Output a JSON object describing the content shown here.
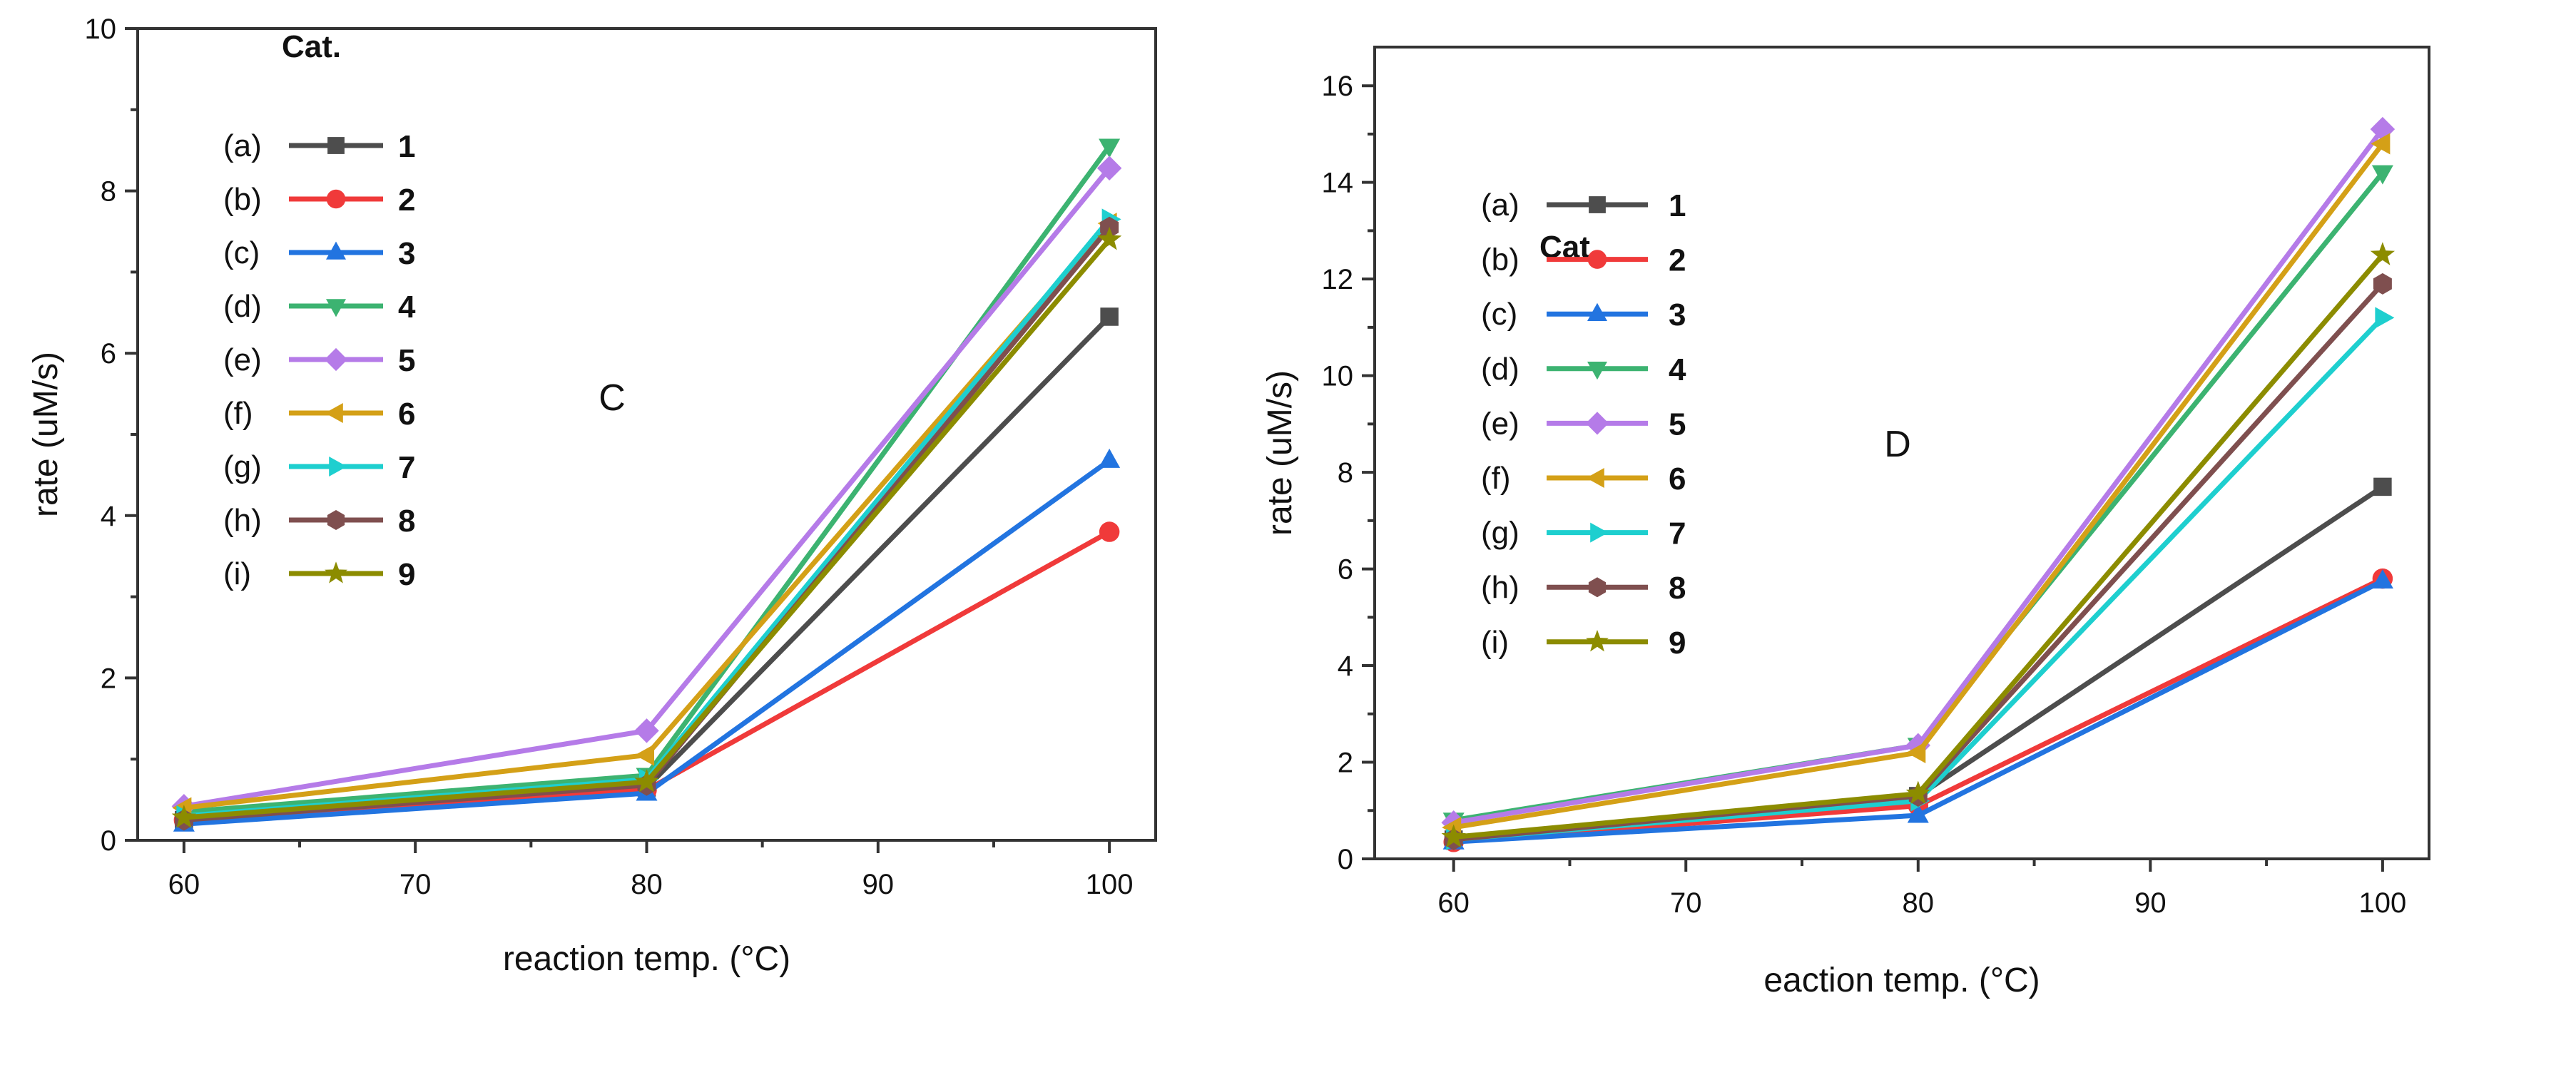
{
  "chart_data": [
    {
      "type": "line",
      "panel_label": "C",
      "title": "",
      "xlabel": "reaction temp. (°C)",
      "ylabel": "rate (uM/s)",
      "xlim": [
        58,
        102
      ],
      "ylim": [
        0,
        10
      ],
      "x": [
        60,
        80,
        100
      ],
      "xticks": [
        60,
        70,
        80,
        90,
        100
      ],
      "yticks": [
        0,
        2,
        4,
        6,
        8,
        10
      ],
      "grid": false,
      "legend_title": "Cat.",
      "legend_placement": "top-left",
      "series": [
        {
          "prefix": "(a)",
          "name": "1",
          "color": "#4d4d4d",
          "marker": "square",
          "values": [
            0.25,
            0.65,
            6.45
          ]
        },
        {
          "prefix": "(b)",
          "name": "2",
          "color": "#f03a3a",
          "marker": "circle",
          "values": [
            0.25,
            0.62,
            3.8
          ]
        },
        {
          "prefix": "(c)",
          "name": "3",
          "color": "#2274e0",
          "marker": "triangle-up",
          "values": [
            0.2,
            0.58,
            4.68
          ]
        },
        {
          "prefix": "(d)",
          "name": "4",
          "color": "#3cb371",
          "marker": "triangle-down",
          "values": [
            0.35,
            0.8,
            8.55
          ]
        },
        {
          "prefix": "(e)",
          "name": "5",
          "color": "#b57be8",
          "marker": "diamond",
          "values": [
            0.42,
            1.35,
            8.28
          ]
        },
        {
          "prefix": "(f)",
          "name": "6",
          "color": "#d4a017",
          "marker": "triangle-left",
          "values": [
            0.4,
            1.05,
            7.6
          ]
        },
        {
          "prefix": "(g)",
          "name": "7",
          "color": "#1ecfcf",
          "marker": "triangle-right",
          "values": [
            0.3,
            0.75,
            7.65
          ]
        },
        {
          "prefix": "(h)",
          "name": "8",
          "color": "#7f4f4f",
          "marker": "hexagon",
          "values": [
            0.25,
            0.68,
            7.55
          ]
        },
        {
          "prefix": "(i)",
          "name": "9",
          "color": "#8c8c00",
          "marker": "star",
          "values": [
            0.28,
            0.72,
            7.4
          ]
        }
      ]
    },
    {
      "type": "line",
      "panel_label": "D",
      "title": "",
      "xlabel": "eaction temp. (°C)",
      "ylabel": "rate (uM/s)",
      "xlim": [
        56.6,
        102
      ],
      "ylim": [
        0,
        16.8
      ],
      "x": [
        60,
        80,
        100
      ],
      "xticks": [
        60,
        70,
        80,
        90,
        100
      ],
      "yticks": [
        0,
        2,
        4,
        6,
        8,
        10,
        12,
        14,
        16
      ],
      "grid": false,
      "legend_title": "Cat.",
      "legend_placement": "top-left",
      "series": [
        {
          "prefix": "(a)",
          "name": "1",
          "color": "#4d4d4d",
          "marker": "square",
          "values": [
            0.4,
            1.3,
            7.7
          ]
        },
        {
          "prefix": "(b)",
          "name": "2",
          "color": "#f03a3a",
          "marker": "circle",
          "values": [
            0.35,
            1.1,
            5.8
          ]
        },
        {
          "prefix": "(c)",
          "name": "3",
          "color": "#2274e0",
          "marker": "triangle-up",
          "values": [
            0.35,
            0.9,
            5.75
          ]
        },
        {
          "prefix": "(d)",
          "name": "4",
          "color": "#3cb371",
          "marker": "triangle-down",
          "values": [
            0.8,
            2.35,
            14.2
          ]
        },
        {
          "prefix": "(e)",
          "name": "5",
          "color": "#b57be8",
          "marker": "diamond",
          "values": [
            0.75,
            2.35,
            15.1
          ]
        },
        {
          "prefix": "(f)",
          "name": "6",
          "color": "#d4a017",
          "marker": "triangle-left",
          "values": [
            0.65,
            2.2,
            14.8
          ]
        },
        {
          "prefix": "(g)",
          "name": "7",
          "color": "#1ecfcf",
          "marker": "triangle-right",
          "values": [
            0.4,
            1.2,
            11.2
          ]
        },
        {
          "prefix": "(h)",
          "name": "8",
          "color": "#7f4f4f",
          "marker": "hexagon",
          "values": [
            0.4,
            1.3,
            11.9
          ]
        },
        {
          "prefix": "(i)",
          "name": "9",
          "color": "#8c8c00",
          "marker": "star",
          "values": [
            0.45,
            1.35,
            12.5
          ]
        }
      ]
    }
  ]
}
